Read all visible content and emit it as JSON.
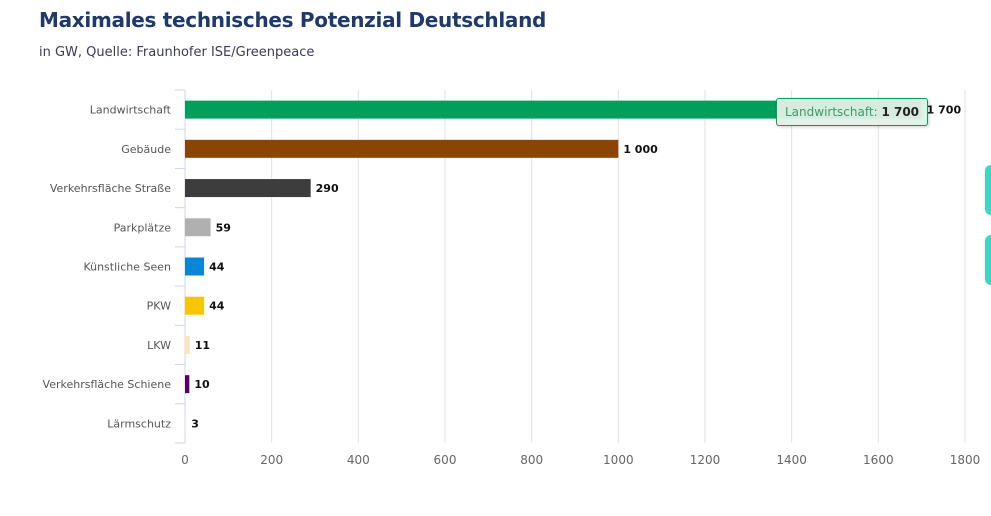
{
  "header": {
    "title": "Maximales technisches Potenzial Deutschland",
    "subtitle": "in GW, Quelle: Fraunhofer ISE/Greenpeace"
  },
  "tooltip": {
    "label": "Landwirtschaft: ",
    "value": "1 700"
  },
  "chart_data": {
    "type": "bar",
    "orientation": "horizontal",
    "title": "Maximales technisches Potenzial Deutschland",
    "subtitle": "in GW, Quelle: Fraunhofer ISE/Greenpeace",
    "categories": [
      "Landwirtschaft",
      "Gebäude",
      "Verkehrsfläche Straße",
      "Parkplätze",
      "Künstliche Seen",
      "PKW",
      "LKW",
      "Verkehrsfläche Schiene",
      "Lärmschutz"
    ],
    "values": [
      1700,
      1000,
      290,
      59,
      44,
      44,
      11,
      10,
      3
    ],
    "data_labels": [
      "1 700",
      "1 000",
      "290",
      "59",
      "44",
      "44",
      "11",
      "10",
      "3"
    ],
    "colors": [
      "#00a05a",
      "#8b4500",
      "#3d3d3d",
      "#b0b0b0",
      "#0a86d8",
      "#f7c600",
      "#fde3c0",
      "#5a0060",
      "#f2f2f2"
    ],
    "xlim": [
      0,
      1800
    ],
    "xticks": [
      0,
      200,
      400,
      600,
      800,
      1000,
      1200,
      1400,
      1600,
      1800
    ],
    "grid": true
  }
}
